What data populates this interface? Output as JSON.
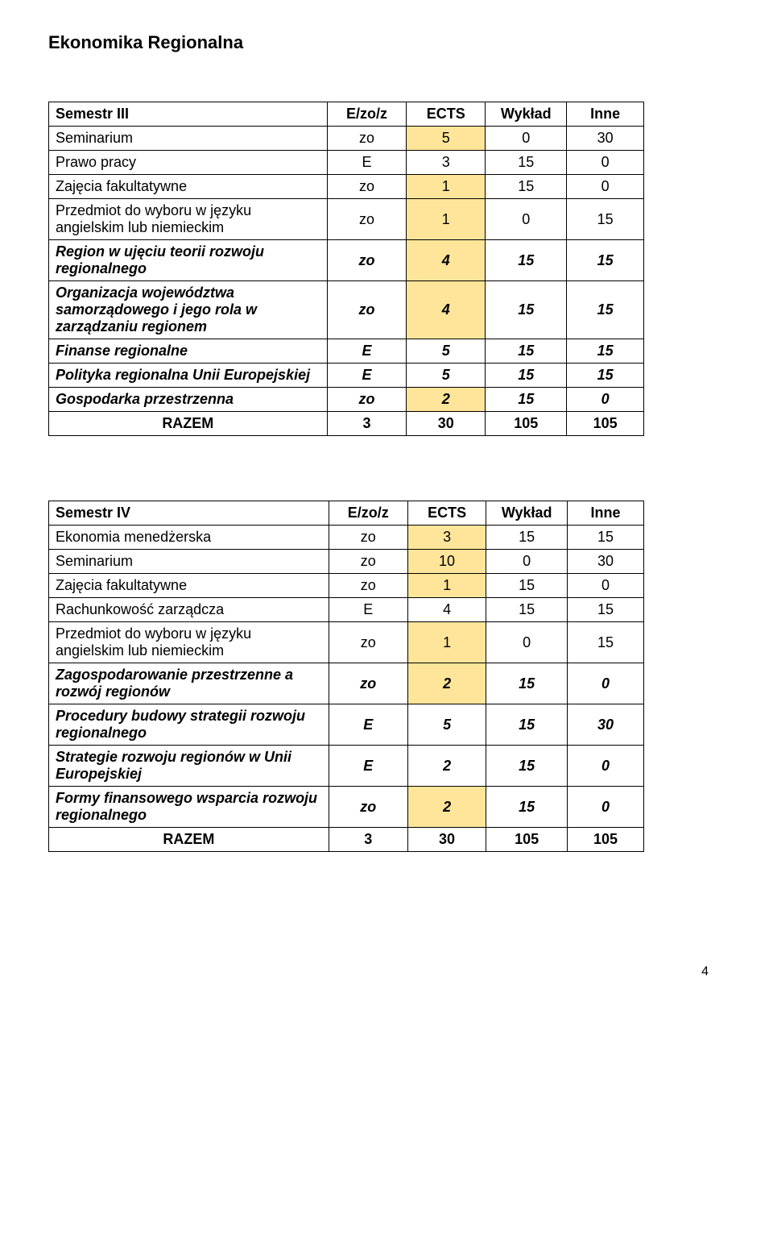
{
  "title": "Ekonomika Regionalna",
  "page_number": "4",
  "highlight_color": "#fee599",
  "table1": {
    "headers": [
      "Semestr III",
      "E/zo/z",
      "ECTS",
      "Wykład",
      "Inne"
    ],
    "rows": [
      {
        "label": "Seminarium",
        "c2": "zo",
        "c3": "5",
        "c4": "0",
        "c5": "30",
        "style": "normal",
        "hl": [
          false,
          true,
          false,
          false
        ]
      },
      {
        "label": "Prawo pracy",
        "c2": "E",
        "c3": "3",
        "c4": "15",
        "c5": "0",
        "style": "normal",
        "hl": [
          false,
          false,
          false,
          false
        ]
      },
      {
        "label": "Zajęcia fakultatywne",
        "c2": "zo",
        "c3": "1",
        "c4": "15",
        "c5": "0",
        "style": "normal",
        "hl": [
          false,
          true,
          false,
          false
        ]
      },
      {
        "label": "Przedmiot do wyboru w języku angielskim lub niemieckim",
        "c2": "zo",
        "c3": "1",
        "c4": "0",
        "c5": "15",
        "style": "normal",
        "hl": [
          false,
          true,
          false,
          false
        ]
      },
      {
        "label": "Region w ujęciu teorii rozwoju regionalnego",
        "c2": "zo",
        "c3": "4",
        "c4": "15",
        "c5": "15",
        "style": "italic",
        "hl": [
          false,
          true,
          false,
          false
        ]
      },
      {
        "label": "Organizacja województwa samorządowego i jego rola w zarządzaniu regionem",
        "c2": "zo",
        "c3": "4",
        "c4": "15",
        "c5": "15",
        "style": "italic",
        "hl": [
          false,
          true,
          false,
          false
        ]
      },
      {
        "label": "Finanse regionalne",
        "c2": "E",
        "c3": "5",
        "c4": "15",
        "c5": "15",
        "style": "italic",
        "hl": [
          false,
          false,
          false,
          false
        ]
      },
      {
        "label": "Polityka regionalna Unii Europejskiej",
        "c2": "E",
        "c3": "5",
        "c4": "15",
        "c5": "15",
        "style": "italic",
        "hl": [
          false,
          false,
          false,
          false
        ]
      },
      {
        "label": "Gospodarka przestrzenna",
        "c2": "zo",
        "c3": "2",
        "c4": "15",
        "c5": "0",
        "style": "italic",
        "hl": [
          false,
          true,
          false,
          false
        ]
      }
    ],
    "total": {
      "label": "RAZEM",
      "c2": "3",
      "c3": "30",
      "c4": "105",
      "c5": "105"
    }
  },
  "table2": {
    "headers": [
      "Semestr IV",
      "E/zo/z",
      "ECTS",
      "Wykład",
      "Inne"
    ],
    "rows": [
      {
        "label": "Ekonomia menedżerska",
        "c2": "zo",
        "c3": "3",
        "c4": "15",
        "c5": "15",
        "style": "normal",
        "hl": [
          false,
          true,
          false,
          false
        ]
      },
      {
        "label": "Seminarium",
        "c2": "zo",
        "c3": "10",
        "c4": "0",
        "c5": "30",
        "style": "normal",
        "hl": [
          false,
          true,
          false,
          false
        ]
      },
      {
        "label": "Zajęcia fakultatywne",
        "c2": "zo",
        "c3": "1",
        "c4": "15",
        "c5": "0",
        "style": "normal",
        "hl": [
          false,
          true,
          false,
          false
        ]
      },
      {
        "label": "Rachunkowość zarządcza",
        "c2": "E",
        "c3": "4",
        "c4": "15",
        "c5": "15",
        "style": "normal",
        "hl": [
          false,
          false,
          false,
          false
        ]
      },
      {
        "label": "Przedmiot do wyboru w języku angielskim lub niemieckim",
        "c2": "zo",
        "c3": "1",
        "c4": "0",
        "c5": "15",
        "style": "normal",
        "hl": [
          false,
          true,
          false,
          false
        ]
      },
      {
        "label": "Zagospodarowanie przestrzenne a rozwój regionów",
        "c2": "zo",
        "c3": "2",
        "c4": "15",
        "c5": "0",
        "style": "italic",
        "hl": [
          false,
          true,
          false,
          false
        ]
      },
      {
        "label": "Procedury budowy strategii rozwoju regionalnego",
        "c2": "E",
        "c3": "5",
        "c4": "15",
        "c5": "30",
        "style": "italic",
        "hl": [
          false,
          false,
          false,
          false
        ]
      },
      {
        "label": "Strategie rozwoju regionów w Unii Europejskiej",
        "c2": "E",
        "c3": "2",
        "c4": "15",
        "c5": "0",
        "style": "italic",
        "hl": [
          false,
          false,
          false,
          false
        ]
      },
      {
        "label": "Formy finansowego wsparcia rozwoju regionalnego",
        "c2": "zo",
        "c3": "2",
        "c4": "15",
        "c5": "0",
        "style": "italic",
        "hl": [
          false,
          true,
          false,
          false
        ]
      }
    ],
    "total": {
      "label": "RAZEM",
      "c2": "3",
      "c3": "30",
      "c4": "105",
      "c5": "105"
    }
  }
}
